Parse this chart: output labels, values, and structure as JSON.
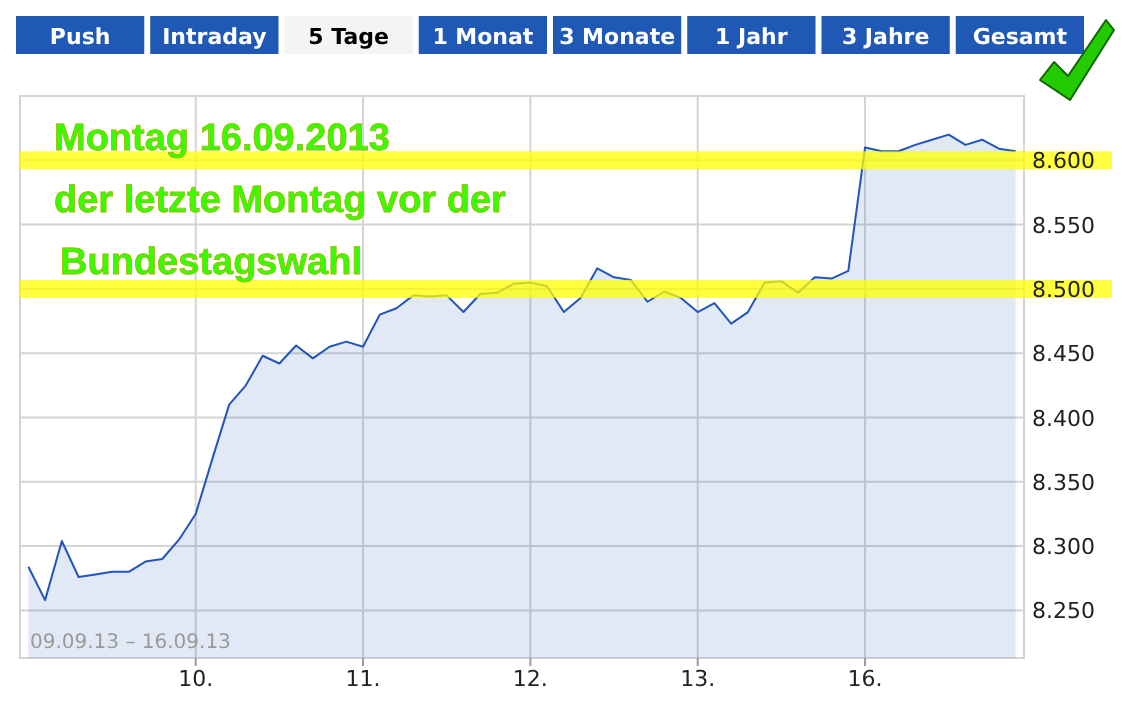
{
  "chart_data": {
    "type": "area",
    "ylim": [
      8213,
      8650
    ],
    "categories": [
      null,
      null,
      null,
      null,
      null,
      null,
      null,
      null,
      null,
      null,
      "10.",
      null,
      null,
      null,
      null,
      null,
      null,
      null,
      null,
      null,
      "11.",
      null,
      null,
      null,
      null,
      null,
      null,
      null,
      null,
      null,
      "12.",
      null,
      null,
      null,
      null,
      null,
      null,
      null,
      null,
      null,
      "13.",
      null,
      null,
      null,
      null,
      null,
      null,
      null,
      null,
      null,
      "16.",
      null,
      null,
      null,
      null,
      null,
      null,
      null,
      null,
      null
    ],
    "yticks": [
      {
        "value": 8250,
        "label": "8.250"
      },
      {
        "value": 8300,
        "label": "8.300"
      },
      {
        "value": 8350,
        "label": "8.350"
      },
      {
        "value": 8400,
        "label": "8.400"
      },
      {
        "value": 8450,
        "label": "8.450"
      },
      {
        "value": 8500,
        "label": "8.500"
      },
      {
        "value": 8550,
        "label": "8.550"
      },
      {
        "value": 8600,
        "label": "8.600"
      }
    ],
    "grid": true,
    "series": [
      {
        "color": "#2255bb",
        "values": [
          8284,
          8258,
          8304,
          8276,
          8278,
          8280,
          8280,
          8288,
          8290,
          8305,
          8325,
          8368,
          8410,
          8425,
          8448,
          8442,
          8456,
          8446,
          8455,
          8459,
          8455,
          8480,
          8485,
          8495,
          8494,
          8495,
          8482,
          8496,
          8497,
          8504,
          8505,
          8502,
          8482,
          8493,
          8516,
          8509,
          8507,
          8490,
          8498,
          8493,
          8482,
          8489,
          8473,
          8482,
          8505,
          8506,
          8497,
          8509,
          8508,
          8514,
          8610,
          8607,
          8607,
          8612,
          8616,
          8620,
          8612,
          8616,
          8609,
          8607
        ]
      }
    ],
    "bands": [
      {
        "axis": "y",
        "from": 8493,
        "to": 8507,
        "color": "#ffff00"
      },
      {
        "axis": "y",
        "from": 8593,
        "to": 8607,
        "color": "#ffff00"
      }
    ],
    "annotations": [
      "Push",
      "Intraday",
      "5 Tage",
      "1 Monat",
      "3 Monate",
      "1 Jahr",
      "3 Jahre",
      "Gesamt",
      "Montag 16.09.2013",
      "der letzte Montag vor der",
      "Bundestagswahl",
      "09.09.13 – 16.09.13"
    ]
  }
}
